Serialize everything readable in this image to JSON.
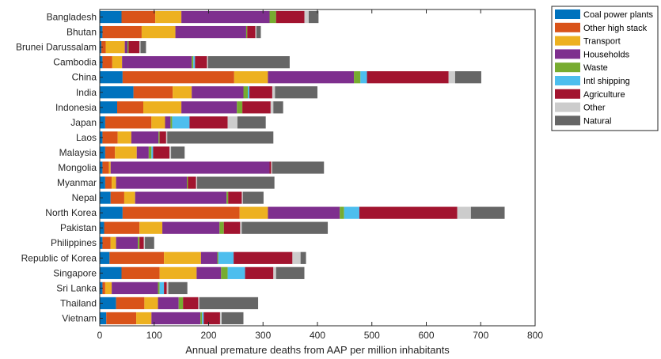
{
  "chart_data": {
    "type": "bar",
    "orientation": "horizontal",
    "stacked": true,
    "xlabel": "Annual premature deaths from AAP per million inhabitants",
    "xlim": [
      0,
      800
    ],
    "xticks": [
      0,
      100,
      200,
      300,
      400,
      500,
      600,
      700,
      800
    ],
    "grid": false,
    "legend_position": "top-right",
    "categories": [
      "Bangladesh",
      "Bhutan",
      "Brunei Darussalam",
      "Cambodia",
      "China",
      "India",
      "Indonesia",
      "Japan",
      "Laos",
      "Malaysia",
      "Mongolia",
      "Myanmar",
      "Nepal",
      "North Korea",
      "Pakistan",
      "Philippines",
      "Republic of Korea",
      "Singapore",
      "Sri Lanka",
      "Thailand",
      "Vietnam"
    ],
    "series": [
      {
        "name": "Coal power plants",
        "color": "#0072BD",
        "values": [
          40,
          5,
          3,
          5,
          42,
          62,
          32,
          10,
          5,
          10,
          5,
          10,
          20,
          42,
          8,
          5,
          18,
          40,
          5,
          30,
          12
        ]
      },
      {
        "name": "Other high stack",
        "color": "#D95319",
        "values": [
          62,
          72,
          8,
          18,
          205,
          72,
          48,
          85,
          28,
          18,
          12,
          12,
          25,
          215,
          65,
          15,
          100,
          70,
          5,
          52,
          55
        ]
      },
      {
        "name": "Transport",
        "color": "#EDB120",
        "values": [
          48,
          62,
          35,
          18,
          62,
          35,
          70,
          25,
          25,
          40,
          3,
          8,
          20,
          52,
          42,
          10,
          68,
          68,
          12,
          25,
          28
        ]
      },
      {
        "name": "Households",
        "color": "#7E2F8E",
        "values": [
          162,
          130,
          5,
          128,
          158,
          95,
          102,
          10,
          50,
          22,
          292,
          130,
          168,
          132,
          105,
          40,
          30,
          45,
          85,
          38,
          90
        ]
      },
      {
        "name": "Waste",
        "color": "#77AC30",
        "values": [
          12,
          2,
          2,
          3,
          12,
          8,
          10,
          3,
          2,
          5,
          0,
          2,
          3,
          8,
          8,
          3,
          2,
          12,
          3,
          8,
          3
        ]
      },
      {
        "name": "Intl shipping",
        "color": "#4DBEEE",
        "values": [
          0,
          0,
          0,
          3,
          12,
          3,
          0,
          32,
          0,
          3,
          0,
          0,
          0,
          28,
          0,
          0,
          28,
          32,
          8,
          0,
          3
        ]
      },
      {
        "name": "Agriculture",
        "color": "#A2142F",
        "values": [
          52,
          15,
          20,
          22,
          150,
          42,
          52,
          70,
          12,
          30,
          3,
          15,
          25,
          180,
          30,
          8,
          108,
          52,
          5,
          28,
          30
        ]
      },
      {
        "name": "Other",
        "color": "#CCCCCC",
        "values": [
          8,
          2,
          2,
          2,
          12,
          5,
          5,
          18,
          2,
          3,
          2,
          2,
          2,
          25,
          3,
          2,
          15,
          5,
          3,
          2,
          3
        ]
      },
      {
        "name": "Natural",
        "color": "#666666",
        "values": [
          18,
          8,
          10,
          150,
          48,
          78,
          18,
          52,
          195,
          25,
          95,
          142,
          38,
          62,
          158,
          17,
          10,
          52,
          35,
          108,
          40
        ]
      }
    ]
  }
}
